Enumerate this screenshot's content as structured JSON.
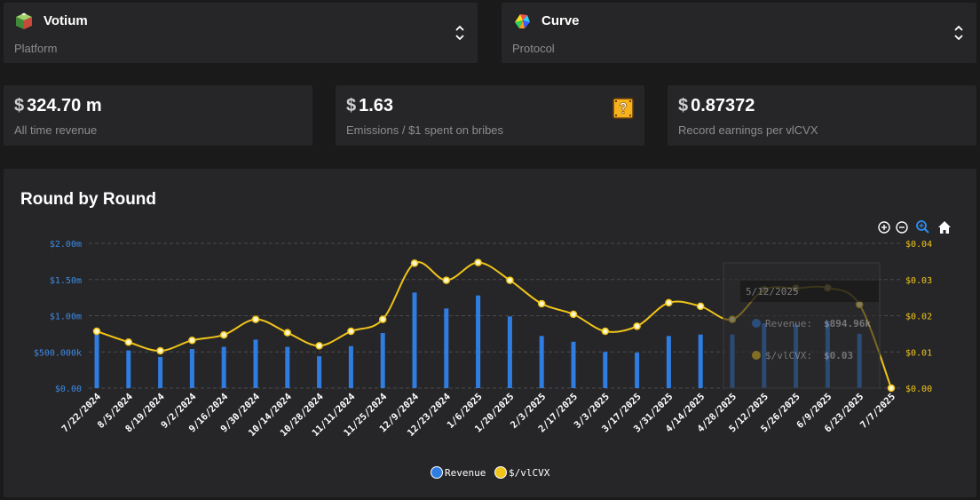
{
  "platform": {
    "name": "Votium",
    "label": "Platform",
    "icon": "votium-cube-icon"
  },
  "protocol": {
    "name": "Curve",
    "label": "Protocol",
    "icon": "curve-logo-icon"
  },
  "stats": [
    {
      "currency": "$",
      "value": "324.70 m",
      "label": "All time revenue"
    },
    {
      "currency": "$",
      "value": "1.63",
      "label": "Emissions / $1 spent on bribes",
      "icon": "question-block-icon"
    },
    {
      "currency": "$",
      "value": "0.87372",
      "label": "Record earnings per vlCVX"
    }
  ],
  "toolbar": {
    "zoom_in": "zoom-in-icon",
    "zoom_out": "zoom-out-icon",
    "zoom_select": "zoom-select-icon",
    "reset": "home-icon"
  },
  "chart_data": {
    "type": "bar",
    "title": "Round by Round",
    "categories": [
      "7/22/2024",
      "8/5/2024",
      "8/19/2024",
      "9/2/2024",
      "9/16/2024",
      "9/30/2024",
      "10/14/2024",
      "10/28/2024",
      "11/11/2024",
      "11/25/2024",
      "12/9/2024",
      "12/23/2024",
      "1/6/2025",
      "1/20/2025",
      "2/3/2025",
      "2/17/2025",
      "3/3/2025",
      "3/17/2025",
      "3/31/2025",
      "4/14/2025",
      "4/28/2025",
      "5/12/2025",
      "5/26/2025",
      "6/9/2025",
      "6/23/2025",
      "7/7/2025"
    ],
    "series": [
      {
        "name": "Revenue",
        "type": "bar",
        "axis": "left",
        "color": "#2f7de1",
        "values": [
          750000,
          520000,
          430000,
          540000,
          570000,
          670000,
          570000,
          440000,
          580000,
          760000,
          1320000,
          1100000,
          1280000,
          990000,
          720000,
          640000,
          500000,
          490000,
          720000,
          740000,
          740000,
          894960,
          880000,
          920000,
          750000,
          0
        ]
      },
      {
        "name": "$/vlCVX",
        "type": "line",
        "axis": "right",
        "color": "#f0c419",
        "values": [
          0.0157,
          0.0127,
          0.0103,
          0.0132,
          0.0147,
          0.019,
          0.0153,
          0.0117,
          0.0157,
          0.019,
          0.0345,
          0.0298,
          0.0347,
          0.0298,
          0.0233,
          0.0204,
          0.0157,
          0.0171,
          0.0236,
          0.0226,
          0.019,
          0.0272,
          0.0276,
          0.0277,
          0.0231,
          0.0
        ]
      }
    ],
    "y_left": {
      "ticks": [
        "$0.00",
        "$500.000k",
        "$1.00m",
        "$1.50m",
        "$2.00m"
      ],
      "range": [
        0,
        2000000
      ],
      "color": "#3d8be8"
    },
    "y_right": {
      "ticks": [
        "$0.00",
        "$0.01",
        "$0.02",
        "$0.03",
        "$0.04"
      ],
      "range": [
        0,
        0.04
      ],
      "color": "#f0c419"
    },
    "grid": "horizontal-dashed",
    "legend": {
      "position": "bottom-center",
      "items": [
        "Revenue",
        "$/vlCVX"
      ]
    },
    "tooltip": {
      "category": "5/12/2025",
      "rows": [
        {
          "label": "Revenue:",
          "value": "$894.96k"
        },
        {
          "label": "$/vlCVX:",
          "value": "$0.03"
        }
      ]
    }
  }
}
